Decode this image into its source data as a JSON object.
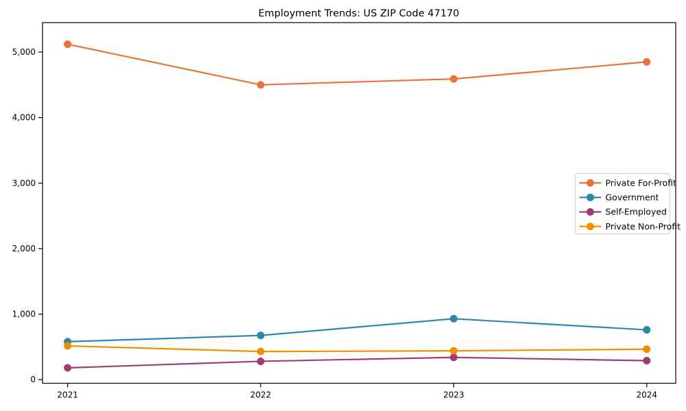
{
  "figure": {
    "background": "#ffffff",
    "text_color": "#000000",
    "spine_color": "#000000"
  },
  "chart_data": {
    "type": "line",
    "title": "Employment Trends: US ZIP Code 47170",
    "x": [
      2021,
      2022,
      2023,
      2024
    ],
    "x_tick_labels": [
      "2021",
      "2022",
      "2023",
      "2024"
    ],
    "series": [
      {
        "name": "Private For-Profit",
        "color": "#E8743B",
        "values": [
          5120,
          4500,
          4590,
          4850
        ]
      },
      {
        "name": "Government",
        "color": "#2E86AB",
        "values": [
          580,
          675,
          930,
          760
        ]
      },
      {
        "name": "Self-Employed",
        "color": "#A23B72",
        "values": [
          180,
          280,
          340,
          290
        ]
      },
      {
        "name": "Private Non-Profit",
        "color": "#F18F01",
        "values": [
          515,
          430,
          440,
          465
        ]
      }
    ],
    "xlabel": "",
    "ylabel": "",
    "xlim": [
      2020.87,
      2024.15
    ],
    "ylim": [
      -55,
      5450
    ],
    "yticks": [
      0,
      1000,
      2000,
      3000,
      4000,
      5000
    ],
    "grid": false,
    "marker": "circle",
    "legend": {
      "position": "center-right",
      "border_color": "#cccccc",
      "background": "#ffffff"
    }
  }
}
